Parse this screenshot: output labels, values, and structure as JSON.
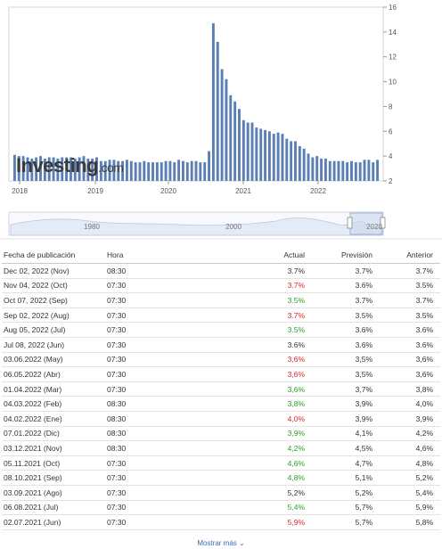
{
  "chart_data": {
    "type": "bar",
    "x_ticks": [
      "2018",
      "2019",
      "2020",
      "2021",
      "2022"
    ],
    "y_ticks": [
      2,
      4,
      6,
      8,
      10,
      12,
      14,
      16
    ],
    "ylim": [
      2,
      16
    ],
    "y_axis_side": "right",
    "values": [
      4.1,
      4.0,
      4.0,
      3.9,
      3.8,
      3.9,
      4.0,
      3.8,
      3.9,
      3.9,
      3.8,
      3.9,
      3.9,
      3.9,
      3.8,
      3.9,
      4.0,
      3.8,
      3.8,
      3.9,
      3.6,
      3.6,
      3.7,
      3.7,
      3.6,
      3.6,
      3.7,
      3.6,
      3.5,
      3.5,
      3.6,
      3.5,
      3.5,
      3.5,
      3.5,
      3.6,
      3.6,
      3.5,
      3.7,
      3.6,
      3.5,
      3.6,
      3.6,
      3.5,
      3.5,
      4.4,
      14.7,
      13.2,
      11.0,
      10.2,
      8.9,
      8.4,
      7.8,
      6.9,
      6.7,
      6.7,
      6.3,
      6.2,
      6.1,
      6.0,
      5.8,
      5.9,
      5.8,
      5.4,
      5.2,
      5.2,
      4.8,
      4.6,
      4.2,
      3.9,
      4.0,
      3.8,
      3.8,
      3.6,
      3.6,
      3.6,
      3.6,
      3.5,
      3.6,
      3.5,
      3.5,
      3.7,
      3.7,
      3.5,
      3.7
    ],
    "navigator_ticks": [
      "1980",
      "2000",
      "2020"
    ],
    "grid": "off"
  },
  "logo": {
    "main": "Investing",
    "suffix": ".com"
  },
  "table": {
    "headers": [
      "Fecha de publicación",
      "Hora",
      "Actual",
      "Previsión",
      "Anterior"
    ],
    "rows": [
      {
        "fecha": "Dec 02, 2022 (Nov)",
        "hora": "08:30",
        "actual": "3.7%",
        "prevision": "3.7%",
        "anterior": "3.7%",
        "color": "neutral"
      },
      {
        "fecha": "Nov 04, 2022 (Oct)",
        "hora": "07:30",
        "actual": "3.7%",
        "prevision": "3.6%",
        "anterior": "3.5%",
        "color": "red"
      },
      {
        "fecha": "Oct 07, 2022 (Sep)",
        "hora": "07:30",
        "actual": "3.5%",
        "prevision": "3.7%",
        "anterior": "3.7%",
        "color": "green"
      },
      {
        "fecha": "Sep 02, 2022 (Aug)",
        "hora": "07:30",
        "actual": "3.7%",
        "prevision": "3.5%",
        "anterior": "3.5%",
        "color": "red"
      },
      {
        "fecha": "Aug 05, 2022 (Jul)",
        "hora": "07:30",
        "actual": "3.5%",
        "prevision": "3.6%",
        "anterior": "3.6%",
        "color": "green"
      },
      {
        "fecha": "Jul 08, 2022 (Jun)",
        "hora": "07:30",
        "actual": "3.6%",
        "prevision": "3.6%",
        "anterior": "3.6%",
        "color": "neutral"
      },
      {
        "fecha": "03.06.2022 (May)",
        "hora": "07:30",
        "actual": "3,6%",
        "prevision": "3,5%",
        "anterior": "3,6%",
        "color": "red"
      },
      {
        "fecha": "06.05.2022 (Abr)",
        "hora": "07:30",
        "actual": "3,6%",
        "prevision": "3,5%",
        "anterior": "3,6%",
        "color": "red"
      },
      {
        "fecha": "01.04.2022 (Mar)",
        "hora": "07:30",
        "actual": "3,6%",
        "prevision": "3,7%",
        "anterior": "3,8%",
        "color": "green"
      },
      {
        "fecha": "04.03.2022 (Feb)",
        "hora": "08:30",
        "actual": "3,8%",
        "prevision": "3,9%",
        "anterior": "4,0%",
        "color": "green"
      },
      {
        "fecha": "04.02.2022 (Ene)",
        "hora": "08:30",
        "actual": "4,0%",
        "prevision": "3,9%",
        "anterior": "3,9%",
        "color": "red"
      },
      {
        "fecha": "07.01.2022 (Dic)",
        "hora": "08:30",
        "actual": "3,9%",
        "prevision": "4,1%",
        "anterior": "4,2%",
        "color": "green"
      },
      {
        "fecha": "03.12.2021 (Nov)",
        "hora": "08:30",
        "actual": "4,2%",
        "prevision": "4,5%",
        "anterior": "4,6%",
        "color": "green"
      },
      {
        "fecha": "05.11.2021 (Oct)",
        "hora": "07:30",
        "actual": "4,6%",
        "prevision": "4,7%",
        "anterior": "4,8%",
        "color": "green"
      },
      {
        "fecha": "08.10.2021 (Sep)",
        "hora": "07:30",
        "actual": "4,8%",
        "prevision": "5,1%",
        "anterior": "5,2%",
        "color": "green"
      },
      {
        "fecha": "03.09.2021 (Ago)",
        "hora": "07:30",
        "actual": "5,2%",
        "prevision": "5,2%",
        "anterior": "5,4%",
        "color": "neutral"
      },
      {
        "fecha": "06.08.2021 (Jul)",
        "hora": "07:30",
        "actual": "5,4%",
        "prevision": "5,7%",
        "anterior": "5,9%",
        "color": "green"
      },
      {
        "fecha": "02.07.2021 (Jun)",
        "hora": "07:30",
        "actual": "5,9%",
        "prevision": "5,7%",
        "anterior": "5,8%",
        "color": "red"
      }
    ]
  },
  "show_more": "Mostrar más ⌄",
  "colors": {
    "bar": "#5b7fb5",
    "green": "#2aa12a",
    "red": "#e02424",
    "axis": "#999999"
  }
}
